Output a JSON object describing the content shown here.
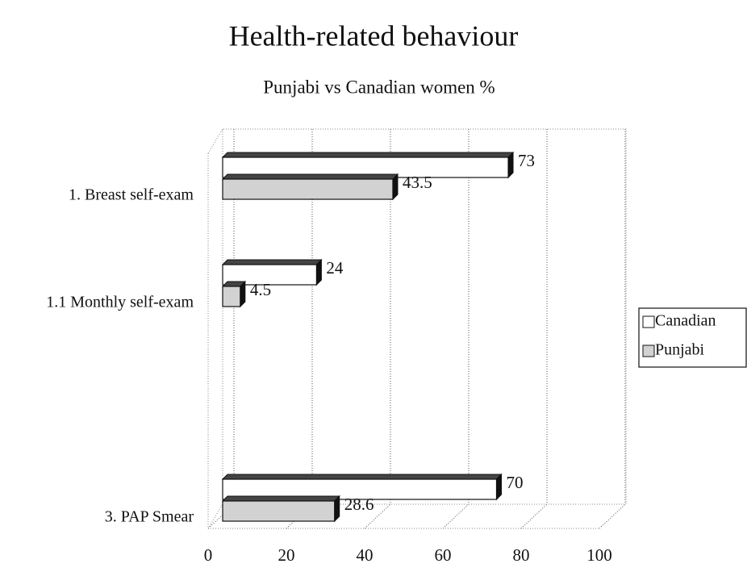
{
  "chart_data": {
    "type": "bar3d_horizontal",
    "title": "Health-related behaviour",
    "subtitle": "Punjabi vs Canadian women %",
    "categories": [
      "1. Breast self-exam",
      "1.1 Monthly self-exam",
      null,
      "3. PAP Smear"
    ],
    "series": [
      {
        "name": "Canadian",
        "color": "#ffffff",
        "values": [
          73,
          24,
          null,
          70
        ]
      },
      {
        "name": "Punjabi",
        "color": "#d2d2d2",
        "values": [
          43.5,
          4.5,
          null,
          28.6
        ]
      }
    ],
    "xlim": [
      0,
      100
    ],
    "xticks": [
      0,
      20,
      40,
      60,
      80,
      100
    ],
    "grid": true,
    "legend": "right"
  }
}
